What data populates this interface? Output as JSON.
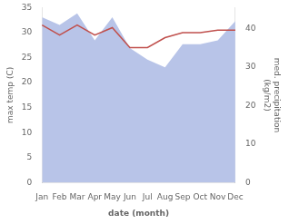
{
  "chart_data": {
    "type": "line",
    "categories": [
      "Jan",
      "Feb",
      "Mar",
      "Apr",
      "May",
      "Jun",
      "Jul",
      "Aug",
      "Sep",
      "Oct",
      "Nov",
      "Dec"
    ],
    "series": [
      {
        "type": "area",
        "color": "#b8c4e8",
        "axis": "y2",
        "values": [
          43,
          41,
          44,
          37,
          43,
          35,
          32,
          30,
          36,
          36,
          37,
          42
        ]
      },
      {
        "type": "line",
        "color": "#c0504d",
        "values": [
          31.5,
          29.5,
          31.5,
          29.5,
          31.0,
          27.0,
          27.0,
          29.0,
          30.0,
          30.0,
          30.5,
          30.5
        ]
      }
    ],
    "ylim": [
      0,
      35
    ],
    "yticks": [
      0,
      5,
      10,
      15,
      20,
      25,
      30,
      35
    ],
    "y2lim": [
      0,
      45.5
    ],
    "y2ticks": [
      0,
      10,
      20,
      30,
      40
    ],
    "ylabel": "max temp (C)",
    "y2label": "med. precipitation\n(kg/m2)",
    "xlabel": "date (month)",
    "grid": false
  }
}
